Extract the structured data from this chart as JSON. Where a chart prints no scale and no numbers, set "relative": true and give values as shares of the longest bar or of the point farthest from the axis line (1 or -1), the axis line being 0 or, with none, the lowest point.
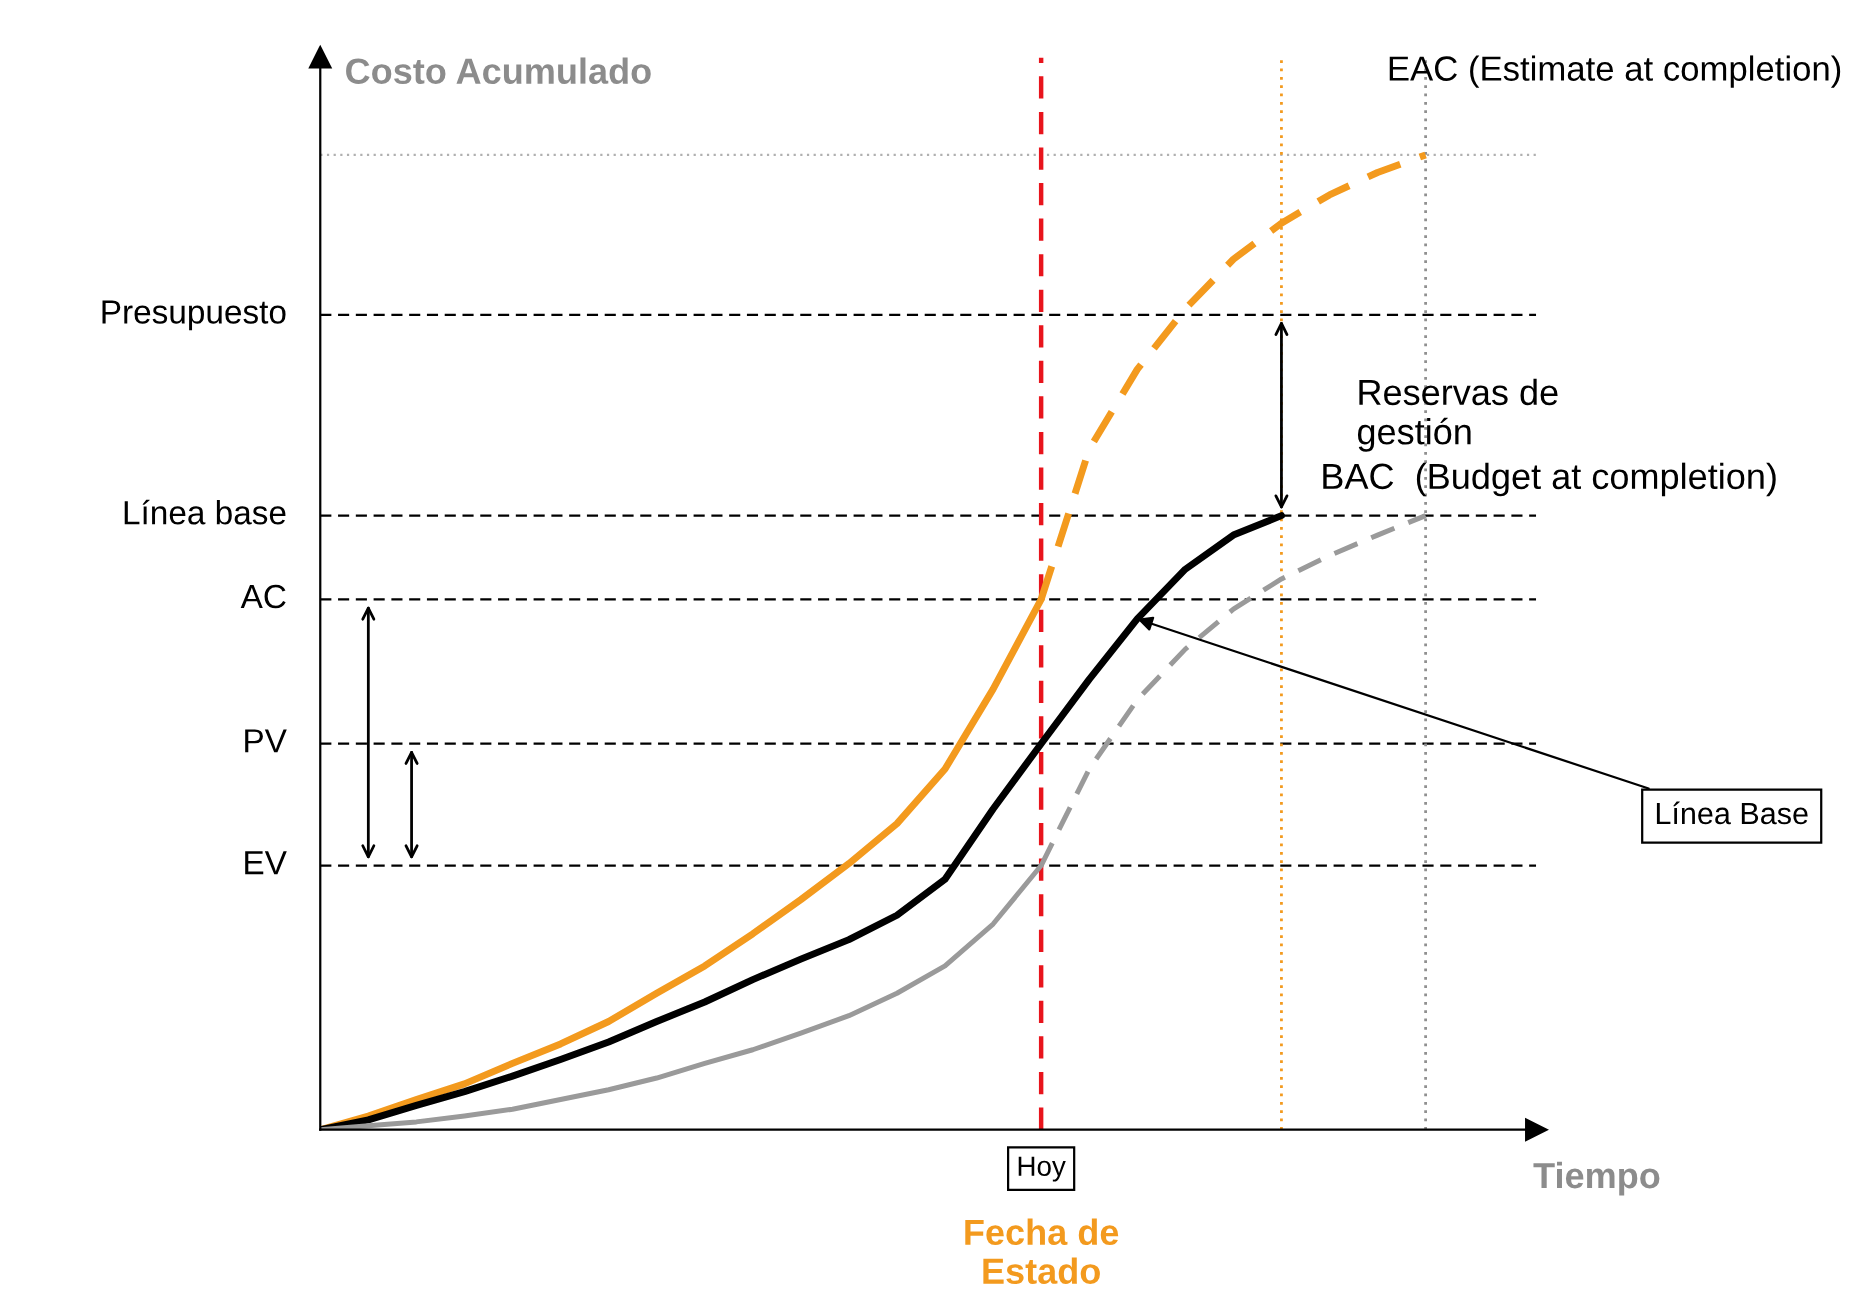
{
  "chart_data": {
    "type": "line",
    "relative": true,
    "xlabel": "Tiempo",
    "ylabel": "Costo Acumulado",
    "categories": [
      null,
      null,
      null,
      null,
      null,
      null,
      null,
      null,
      null,
      null,
      null,
      null,
      null,
      null,
      null,
      null,
      null,
      null,
      null,
      null,
      null,
      null,
      null,
      null
    ],
    "series": [
      {
        "color": "#f39a1e",
        "line_style": "solid",
        "values": [
          0,
          0.014,
          0.031,
          0.047,
          0.068,
          0.088,
          0.111,
          0.14,
          0.168,
          0.201,
          0.236,
          0.273,
          0.314,
          0.37,
          0.452,
          0.544,
          null,
          null,
          null,
          null,
          null,
          null,
          null,
          null
        ]
      },
      {
        "color": "#f39a1e",
        "line_style": "dashed",
        "values": [
          null,
          null,
          null,
          null,
          null,
          null,
          null,
          null,
          null,
          null,
          null,
          null,
          null,
          null,
          null,
          0.544,
          0.698,
          0.78,
          0.842,
          0.893,
          0.93,
          0.959,
          0.982,
          1.0
        ]
      },
      {
        "color": "#000000",
        "line_style": "solid",
        "values": [
          0,
          0.01,
          0.025,
          0.039,
          0.055,
          0.072,
          0.09,
          0.111,
          0.131,
          0.154,
          0.175,
          0.195,
          0.22,
          0.257,
          0.329,
          0.396,
          0.462,
          0.524,
          0.575,
          0.61,
          0.63,
          null,
          null,
          null
        ]
      },
      {
        "color": "#9a9a9a",
        "line_style": "solid",
        "values": [
          0,
          0.004,
          0.008,
          0.014,
          0.021,
          0.031,
          0.041,
          0.053,
          0.068,
          0.082,
          0.099,
          0.117,
          0.14,
          0.168,
          0.211,
          0.271,
          null,
          null,
          null,
          null,
          null,
          null,
          null,
          null
        ]
      },
      {
        "color": "#9a9a9a",
        "line_style": "dashed",
        "values": [
          null,
          null,
          null,
          null,
          null,
          null,
          null,
          null,
          null,
          null,
          null,
          null,
          null,
          null,
          null,
          0.271,
          0.37,
          0.441,
          0.493,
          0.534,
          0.565,
          0.589,
          0.61,
          0.63
        ]
      }
    ],
    "ref_lines": [
      {
        "axis": "y",
        "value": 0.836,
        "label": "Presupuesto",
        "color": "#000000",
        "line_style": "dashed"
      },
      {
        "axis": "y",
        "value": 0.63,
        "label": "Línea base",
        "color": "#000000",
        "line_style": "dashed"
      },
      {
        "axis": "y",
        "value": 0.544,
        "label": "AC",
        "color": "#000000",
        "line_style": "dashed"
      },
      {
        "axis": "y",
        "value": 0.396,
        "label": "PV",
        "color": "#000000",
        "line_style": "dashed"
      },
      {
        "axis": "y",
        "value": 0.271,
        "label": "EV",
        "color": "#000000",
        "line_style": "dashed"
      },
      {
        "axis": "y",
        "value": 1.0,
        "color": "#b0b0b0",
        "line_style": "dotted"
      },
      {
        "axis": "x",
        "label": "Hoy",
        "color": "#e8141c",
        "line_style": "dashed"
      },
      {
        "axis": "x",
        "color": "#f39a1e",
        "line_style": "dotted"
      },
      {
        "axis": "x",
        "color": "#909090",
        "line_style": "dotted"
      }
    ],
    "annotations": [
      "EAC (Estimate at completion)",
      "BAC  (Budget at completion)",
      "Reservas de\ngestión",
      "Línea Base",
      "Fecha de\nEstado"
    ]
  }
}
